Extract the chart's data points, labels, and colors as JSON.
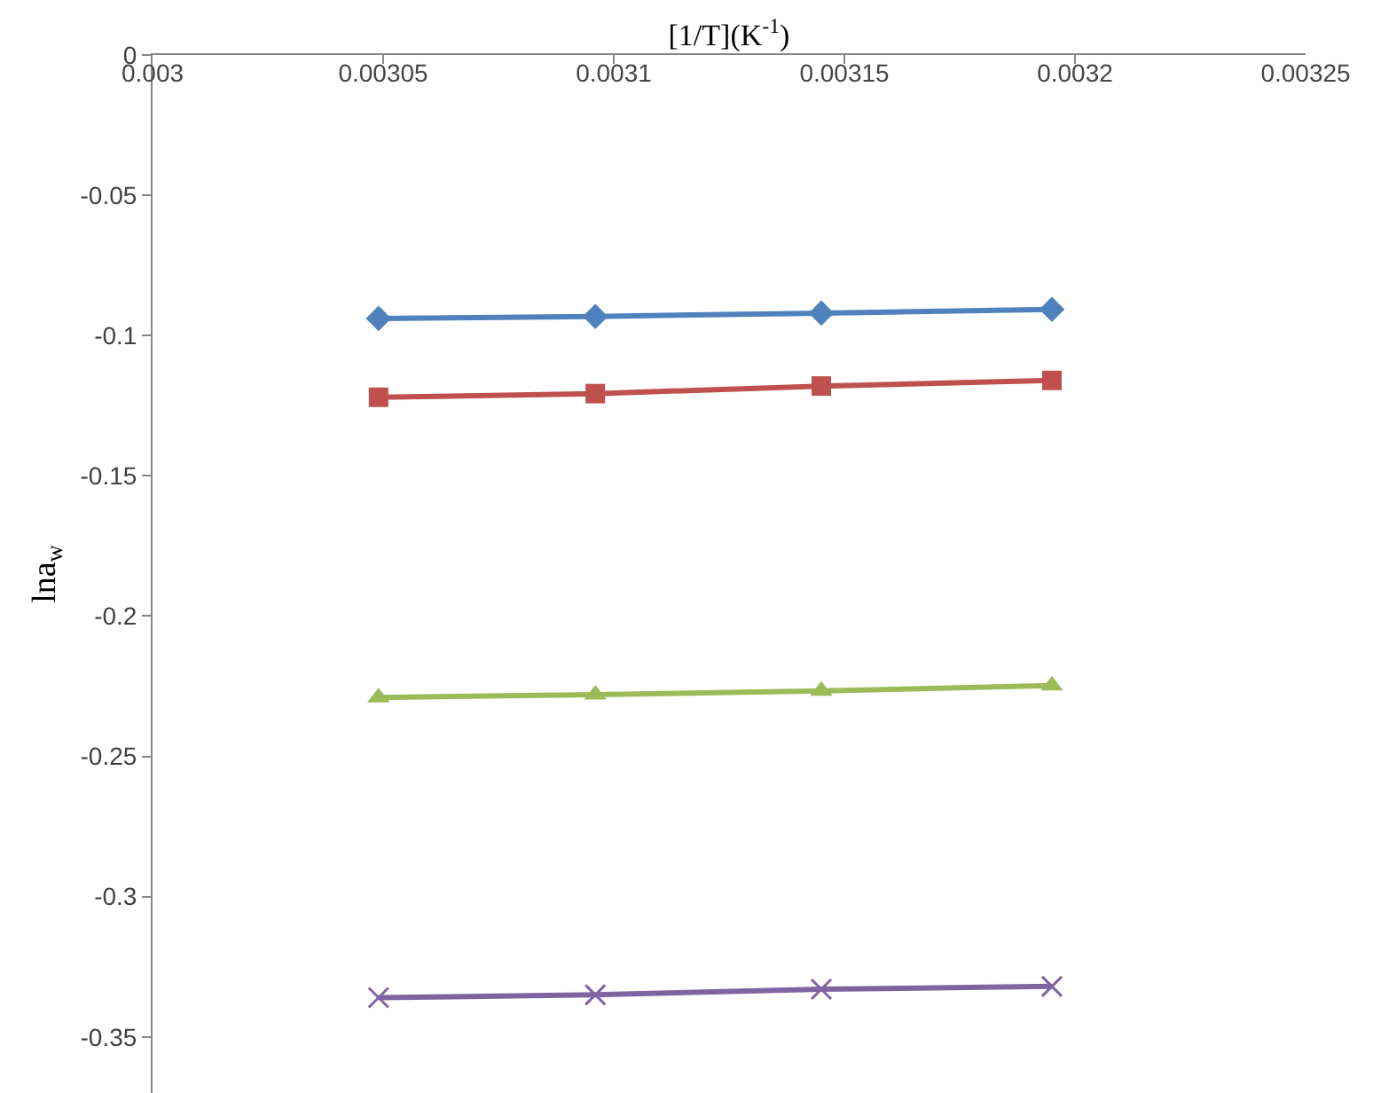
{
  "chart_data": {
    "type": "line",
    "xlabel": "[1/T](K$^{-1}$)",
    "ylabel": "lna$_{w}$",
    "x": [
      0.003049,
      0.003096,
      0.003145,
      0.003195
    ],
    "series": [
      {
        "color": "#4f81bd",
        "marker": "diamond",
        "values": [
          -0.0939,
          -0.0932,
          -0.092,
          -0.0907
        ]
      },
      {
        "color": "#c0504d",
        "marker": "square",
        "values": [
          -0.122,
          -0.1207,
          -0.118,
          -0.116
        ]
      },
      {
        "color": "#9bbb59",
        "marker": "triangle",
        "values": [
          -0.229,
          -0.228,
          -0.2267,
          -0.2248
        ]
      },
      {
        "color": "#8064a2",
        "marker": "cross",
        "values": [
          -0.336,
          -0.335,
          -0.333,
          -0.332
        ]
      }
    ],
    "xlim": [
      0.003,
      0.00325
    ],
    "xticks": [
      0.003,
      0.00305,
      0.0031,
      0.00315,
      0.0032,
      0.00325
    ],
    "ylim": [
      -0.37,
      0
    ],
    "yticks": [
      0,
      -0.05,
      -0.1,
      -0.15,
      -0.2,
      -0.25,
      -0.3,
      -0.35
    ],
    "line_style": "solid"
  }
}
